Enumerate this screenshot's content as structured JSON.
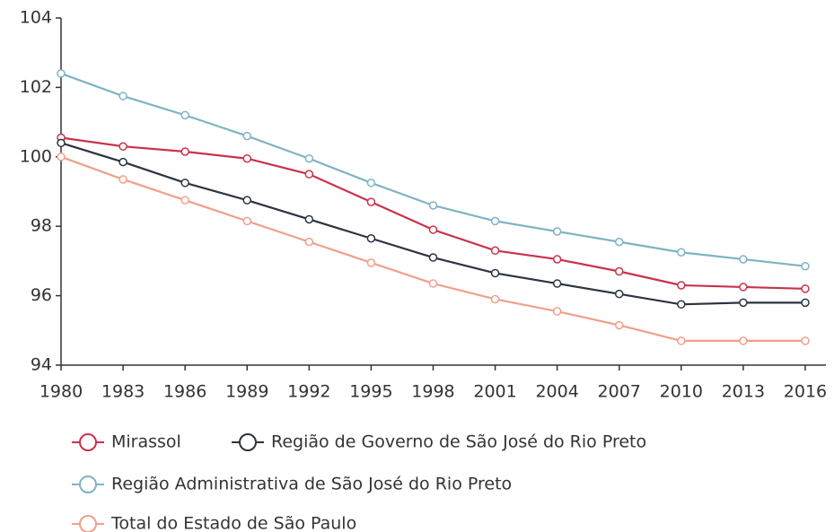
{
  "chart_data": {
    "type": "line",
    "x": [
      1980,
      1983,
      1986,
      1989,
      1992,
      1995,
      1998,
      2001,
      2004,
      2007,
      2010,
      2013,
      2016
    ],
    "series": [
      {
        "name": "Mirassol",
        "color": "#c8334a",
        "values": [
          100.55,
          100.3,
          100.15,
          99.95,
          99.5,
          98.7,
          97.9,
          97.3,
          97.05,
          96.7,
          96.3,
          96.25,
          96.2
        ]
      },
      {
        "name": "Região de Governo de São José do Rio Preto",
        "color": "#2b3440",
        "values": [
          100.4,
          99.85,
          99.25,
          98.75,
          98.2,
          97.65,
          97.1,
          96.65,
          96.35,
          96.05,
          95.75,
          95.8,
          95.8
        ]
      },
      {
        "name": "Região Administrativa de São José do Rio Preto",
        "color": "#7fb3c4",
        "values": [
          102.4,
          101.75,
          101.2,
          100.6,
          99.95,
          99.25,
          98.6,
          98.15,
          97.85,
          97.55,
          97.25,
          97.05,
          96.85
        ]
      },
      {
        "name": "Total do Estado de São Paulo",
        "color": "#f0a08a",
        "values": [
          100.0,
          99.35,
          98.75,
          98.15,
          97.55,
          96.95,
          96.35,
          95.9,
          95.55,
          95.15,
          94.7,
          94.7,
          94.7
        ]
      }
    ],
    "xlim": [
      1980,
      2017
    ],
    "xticks": [
      1980,
      1983,
      1986,
      1989,
      1992,
      1995,
      1998,
      2001,
      2004,
      2007,
      2010,
      2013,
      2016
    ],
    "ylim": [
      94,
      104
    ],
    "yticks": [
      94,
      96,
      98,
      100,
      102,
      104
    ],
    "grid": false
  }
}
